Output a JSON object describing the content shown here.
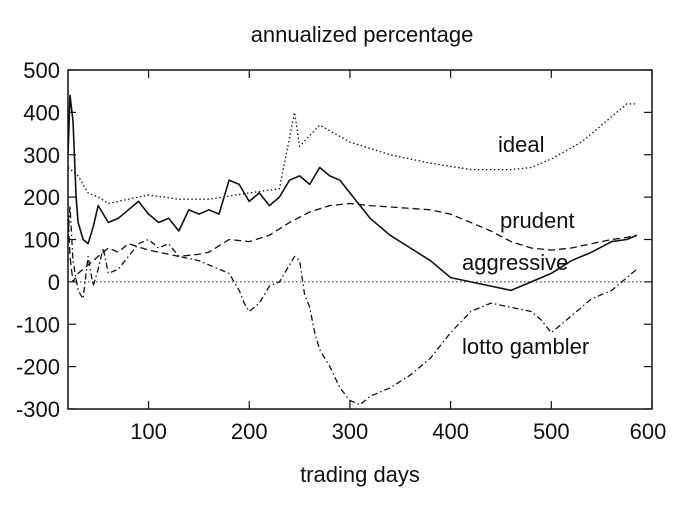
{
  "chart_data": {
    "type": "line",
    "title": "annualized percentage",
    "xlabel": "trading days",
    "ylabel": "",
    "xlim": [
      20,
      600
    ],
    "ylim": [
      -300,
      500
    ],
    "xticks": [
      100,
      200,
      300,
      400,
      500,
      600
    ],
    "yticks": [
      500,
      400,
      300,
      200,
      100,
      0,
      -100,
      -200,
      -300
    ],
    "grid": false,
    "legend": "none",
    "zero_line": true,
    "annotations": [
      "ideal",
      "prudent",
      "aggressive",
      "lotto gambler"
    ],
    "series": [
      {
        "name": "ideal",
        "style": "dotted",
        "x": [
          20,
          30,
          40,
          50,
          60,
          80,
          100,
          130,
          160,
          200,
          230,
          245,
          250,
          270,
          300,
          340,
          380,
          420,
          460,
          480,
          500,
          530,
          560,
          575,
          585
        ],
        "y": [
          270,
          250,
          210,
          200,
          185,
          195,
          205,
          195,
          195,
          210,
          220,
          400,
          320,
          370,
          330,
          300,
          280,
          265,
          265,
          270,
          290,
          330,
          390,
          420,
          420
        ]
      },
      {
        "name": "prudent",
        "style": "dashed",
        "x": [
          20,
          22,
          25,
          30,
          40,
          50,
          60,
          70,
          80,
          100,
          130,
          150,
          160,
          180,
          200,
          220,
          240,
          260,
          280,
          300,
          320,
          350,
          380,
          400,
          420,
          440,
          460,
          480,
          500,
          520,
          540,
          560,
          575,
          585
        ],
        "y": [
          160,
          60,
          0,
          20,
          40,
          60,
          80,
          70,
          90,
          75,
          60,
          65,
          70,
          100,
          95,
          110,
          140,
          165,
          180,
          185,
          180,
          175,
          170,
          160,
          140,
          120,
          95,
          80,
          75,
          80,
          90,
          100,
          105,
          110
        ]
      },
      {
        "name": "aggressive",
        "style": "solid",
        "x": [
          20,
          22,
          25,
          28,
          30,
          35,
          40,
          45,
          50,
          60,
          70,
          80,
          90,
          100,
          110,
          120,
          130,
          140,
          150,
          160,
          170,
          180,
          190,
          200,
          210,
          220,
          230,
          240,
          250,
          260,
          270,
          280,
          290,
          300,
          320,
          340,
          360,
          380,
          400,
          420,
          440,
          460,
          480,
          500,
          520,
          540,
          560,
          575,
          585
        ],
        "y": [
          300,
          440,
          380,
          200,
          140,
          100,
          90,
          130,
          180,
          140,
          150,
          170,
          190,
          160,
          140,
          150,
          120,
          170,
          160,
          170,
          160,
          240,
          230,
          190,
          210,
          180,
          200,
          240,
          250,
          230,
          270,
          250,
          240,
          210,
          150,
          110,
          80,
          50,
          10,
          0,
          -10,
          -20,
          0,
          20,
          50,
          70,
          95,
          100,
          110
        ]
      },
      {
        "name": "lotto gambler",
        "style": "dash-dot",
        "x": [
          20,
          22,
          25,
          30,
          35,
          40,
          45,
          50,
          55,
          60,
          70,
          80,
          90,
          100,
          110,
          120,
          130,
          150,
          170,
          180,
          190,
          195,
          200,
          205,
          210,
          220,
          230,
          240,
          245,
          250,
          255,
          260,
          265,
          270,
          280,
          290,
          300,
          310,
          320,
          340,
          360,
          380,
          400,
          420,
          440,
          460,
          480,
          490,
          500,
          510,
          520,
          540,
          560,
          575,
          585
        ],
        "y": [
          100,
          180,
          50,
          -20,
          -40,
          60,
          -10,
          30,
          80,
          20,
          30,
          60,
          90,
          100,
          80,
          90,
          60,
          50,
          30,
          20,
          -20,
          -50,
          -70,
          -60,
          -50,
          -10,
          0,
          40,
          60,
          50,
          -30,
          -60,
          -120,
          -160,
          -200,
          -250,
          -280,
          -290,
          -270,
          -250,
          -220,
          -180,
          -120,
          -70,
          -50,
          -60,
          -70,
          -90,
          -120,
          -100,
          -80,
          -40,
          -20,
          10,
          30
        ]
      }
    ]
  }
}
